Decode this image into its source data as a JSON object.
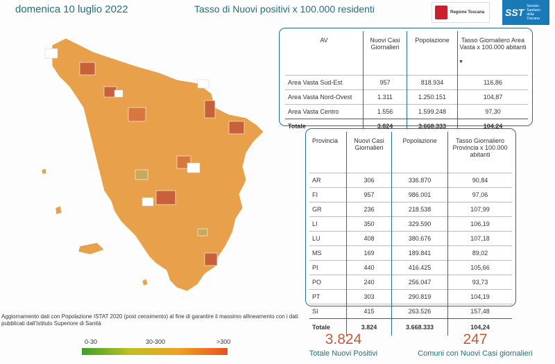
{
  "header": {
    "date": "domenica 10 luglio 2022",
    "title": "Tasso di Nuovi positivi x 100.000 residenti"
  },
  "logos": {
    "regione": "Regione Toscana",
    "sst_big": "SST",
    "sst_small": "Servizio Sanitario della Toscana",
    "regione_color": "#c8202e",
    "sst_color": "#1a7ab8"
  },
  "av_table": {
    "headers": [
      "AV",
      "Nuovi Casi Giornalieri",
      "Popolazione",
      "Tasso Giornaliero Area Vasta x 100.000 abitanti"
    ],
    "sort_indicator": "▼",
    "rows": [
      [
        "Area Vasta Sud-Est",
        "957",
        "818.934",
        "116,86"
      ],
      [
        "Area Vasta Nord-Ovest",
        "1.311",
        "1.250.151",
        "104,87"
      ],
      [
        "Area Vasta Centro",
        "1.556",
        "1.599.248",
        "97,30"
      ]
    ],
    "total": [
      "Totale",
      "3.824",
      "3.668.333",
      "104,24"
    ]
  },
  "province_table": {
    "headers": [
      "Provincia",
      "Nuovi Casi Giornalieri",
      "Popolazione",
      "Tasso Giornaliero Provincia x 100.000 abitanti"
    ],
    "rows": [
      [
        "AR",
        "306",
        "336.870",
        "90,84"
      ],
      [
        "FI",
        "957",
        "986.001",
        "97,06"
      ],
      [
        "GR",
        "236",
        "218.538",
        "107,99"
      ],
      [
        "LI",
        "350",
        "329.590",
        "106,19"
      ],
      [
        "LU",
        "408",
        "380.676",
        "107,18"
      ],
      [
        "MS",
        "169",
        "189.841",
        "89,02"
      ],
      [
        "PI",
        "440",
        "416.425",
        "105,66"
      ],
      [
        "PO",
        "240",
        "256.047",
        "93,73"
      ],
      [
        "PT",
        "303",
        "290.819",
        "104,19"
      ],
      [
        "SI",
        "415",
        "263.526",
        "157,48"
      ]
    ],
    "total": [
      "Totale",
      "3.824",
      "3.668.333",
      "104,24"
    ]
  },
  "note": "Aggiornamento dati con Popolazione ISTAT 2020 (post censimento) al fine di garantire il massimo allineamento con i dati pubblicati dall'Istituto Superiore di Sanità",
  "legend": {
    "low": "0-30",
    "mid": "30-300",
    "high": ">300"
  },
  "kpi": {
    "positivi_value": "3.824",
    "positivi_label": "Totale Nuovi Positivi",
    "comuni_value": "247",
    "comuni_label": "Comuni con Nuovi Casi giornalieri"
  },
  "colors": {
    "accent": "#1f6f82",
    "kpi": "#c65a3a",
    "map_base": "#e8a04a",
    "map_dark": "#c8603a"
  }
}
